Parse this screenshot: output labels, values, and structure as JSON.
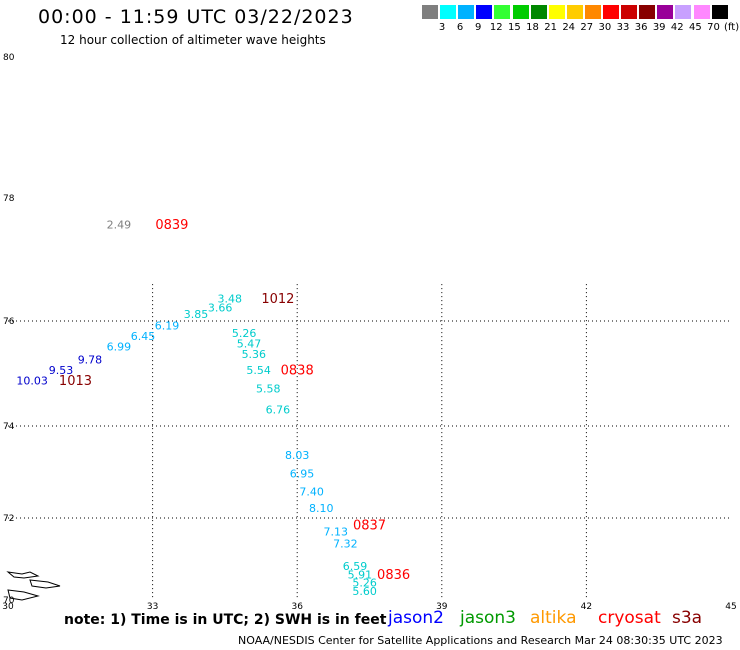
{
  "header": {
    "title": "00:00 - 11:59 UTC 03/22/2023",
    "subtitle": "12 hour collection of altimeter wave heights"
  },
  "colorbar": {
    "colors": [
      "#7f7f7f",
      "#00ffff",
      "#00b2ff",
      "#0000ff",
      "#33ff33",
      "#00cc00",
      "#008800",
      "#ffff00",
      "#ffcc00",
      "#ff8800",
      "#ff0000",
      "#cc0000",
      "#880000",
      "#990099",
      "#c8a0ff",
      "#ff88ff",
      "#000000"
    ],
    "labels": [
      "3",
      "6",
      "9",
      "12",
      "15",
      "18",
      "21",
      "24",
      "27",
      "30",
      "33",
      "36",
      "39",
      "42",
      "45",
      "70",
      "(ft)"
    ]
  },
  "axes": {
    "lon_ticks": [
      "30",
      "33",
      "36",
      "39",
      "42",
      "45"
    ],
    "lat_ticks": [
      "70",
      "72",
      "74",
      "76",
      "78",
      "80"
    ]
  },
  "observations": [
    {
      "text": "2.49",
      "lon": 32.3,
      "lat": 77.55,
      "color": "#7f7f7f"
    },
    {
      "text": "0839",
      "lon": 33.4,
      "lat": 77.55,
      "color": "#ff0000",
      "bold": true
    },
    {
      "text": "10.03",
      "lon": 30.5,
      "lat": 74.85,
      "color": "#0000cc"
    },
    {
      "text": "1013",
      "lon": 31.4,
      "lat": 74.85,
      "color": "#880000",
      "bold": true
    },
    {
      "text": "9.53",
      "lon": 31.1,
      "lat": 75.05,
      "color": "#0000cc"
    },
    {
      "text": "9.78",
      "lon": 31.7,
      "lat": 75.25,
      "color": "#0000cc"
    },
    {
      "text": "6.99",
      "lon": 32.3,
      "lat": 75.5,
      "color": "#00b2ff"
    },
    {
      "text": "6.45",
      "lon": 32.8,
      "lat": 75.7,
      "color": "#00b2ff"
    },
    {
      "text": "6.19",
      "lon": 33.3,
      "lat": 75.9,
      "color": "#00b2ff"
    },
    {
      "text": "3.85",
      "lon": 33.9,
      "lat": 76.1,
      "color": "#00cccc"
    },
    {
      "text": "3.66",
      "lon": 34.4,
      "lat": 76.2,
      "color": "#00cccc"
    },
    {
      "text": "3.48",
      "lon": 34.6,
      "lat": 76.35,
      "color": "#00cccc"
    },
    {
      "text": "1012",
      "lon": 35.6,
      "lat": 76.35,
      "color": "#880000",
      "bold": true
    },
    {
      "text": "5.26",
      "lon": 34.9,
      "lat": 75.75,
      "color": "#00cccc"
    },
    {
      "text": "5.47",
      "lon": 35.0,
      "lat": 75.55,
      "color": "#00cccc"
    },
    {
      "text": "5.36",
      "lon": 35.1,
      "lat": 75.35,
      "color": "#00cccc"
    },
    {
      "text": "5.54",
      "lon": 35.2,
      "lat": 75.05,
      "color": "#00cccc"
    },
    {
      "text": "0838",
      "lon": 36.0,
      "lat": 75.05,
      "color": "#ff0000",
      "bold": true
    },
    {
      "text": "5.58",
      "lon": 35.4,
      "lat": 74.7,
      "color": "#00cccc"
    },
    {
      "text": "6.76",
      "lon": 35.6,
      "lat": 74.3,
      "color": "#00cccc"
    },
    {
      "text": "8.03",
      "lon": 36.0,
      "lat": 73.35,
      "color": "#00b2ff"
    },
    {
      "text": "6.95",
      "lon": 36.1,
      "lat": 72.95,
      "color": "#00b2ff"
    },
    {
      "text": "7.40",
      "lon": 36.3,
      "lat": 72.55,
      "color": "#00b2ff"
    },
    {
      "text": "8.10",
      "lon": 36.5,
      "lat": 72.2,
      "color": "#00b2ff"
    },
    {
      "text": "7.13",
      "lon": 36.8,
      "lat": 71.65,
      "color": "#00b2ff"
    },
    {
      "text": "0837",
      "lon": 37.5,
      "lat": 71.8,
      "color": "#ff0000",
      "bold": true
    },
    {
      "text": "7.32",
      "lon": 37.0,
      "lat": 71.35,
      "color": "#00b2ff"
    },
    {
      "text": "6.59",
      "lon": 37.2,
      "lat": 70.8,
      "color": "#00cccc"
    },
    {
      "text": "5.91",
      "lon": 37.3,
      "lat": 70.6,
      "color": "#00cccc"
    },
    {
      "text": "0836",
      "lon": 38.0,
      "lat": 70.6,
      "color": "#ff0000",
      "bold": true
    },
    {
      "text": "5.26",
      "lon": 37.4,
      "lat": 70.4,
      "color": "#00cccc"
    },
    {
      "text": "5.60",
      "lon": 37.4,
      "lat": 70.2,
      "color": "#00cccc"
    }
  ],
  "note": "note:  1) Time is in UTC; 2) SWH is in feet",
  "satellites": [
    {
      "name": "jason2",
      "color": "#0000ff"
    },
    {
      "name": "jason3",
      "color": "#009900"
    },
    {
      "name": "altika",
      "color": "#ff9900"
    },
    {
      "name": "cryosat",
      "color": "#ff0000"
    },
    {
      "name": "s3a",
      "color": "#880000"
    }
  ],
  "credit": "NOAA/NESDIS Center for Satellite Applications and Research     Mar 24 08:30:35 UTC 2023"
}
